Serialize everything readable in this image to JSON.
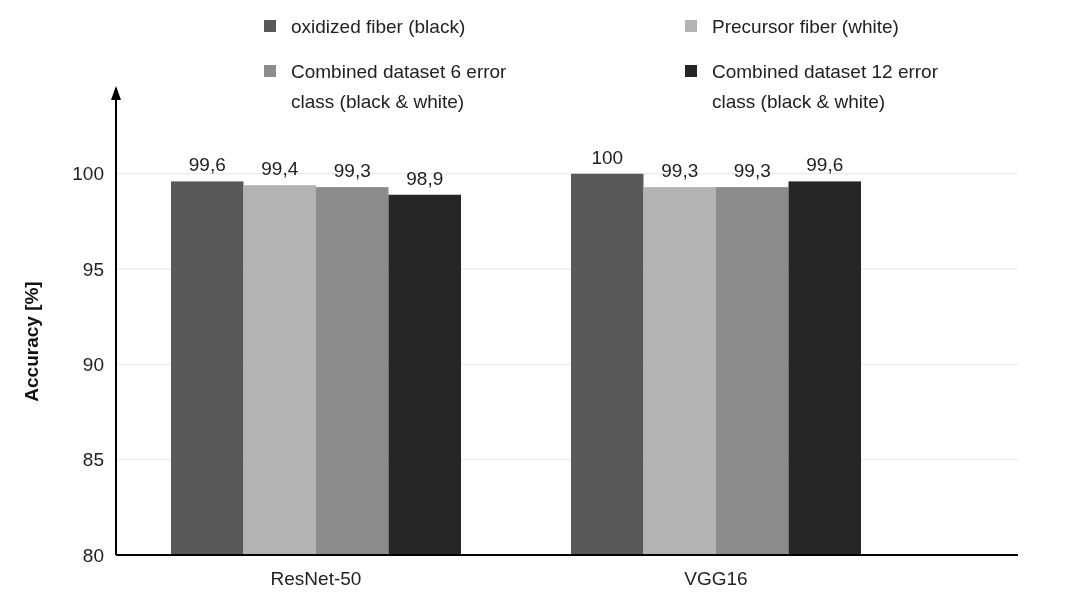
{
  "chart_data": {
    "type": "bar",
    "ylabel": "Accuracy  [%]",
    "categories": [
      "ResNet-50",
      "VGG16"
    ],
    "series": [
      {
        "name": "oxidized fiber (black)",
        "color": "#595959",
        "values": [
          99.6,
          100
        ],
        "value_labels": [
          "99,6",
          "100"
        ]
      },
      {
        "name": "Precursor fiber (white)",
        "color": "#b3b3b3",
        "values": [
          99.4,
          99.3
        ],
        "value_labels": [
          "99,4",
          "99,3"
        ]
      },
      {
        "name": "Combined dataset 6 error class (black & white)",
        "color": "#8c8c8c",
        "values": [
          99.3,
          99.3
        ],
        "value_labels": [
          "99,3",
          "99,3"
        ]
      },
      {
        "name": "Combined dataset 12 error class (black & white)",
        "color": "#262626",
        "values": [
          98.9,
          99.6
        ],
        "value_labels": [
          "98,9",
          "99,6"
        ]
      }
    ],
    "ylim": [
      80,
      104.5
    ],
    "yticks": [
      80,
      85,
      90,
      95,
      100
    ],
    "grid": "y",
    "legend": "top"
  }
}
